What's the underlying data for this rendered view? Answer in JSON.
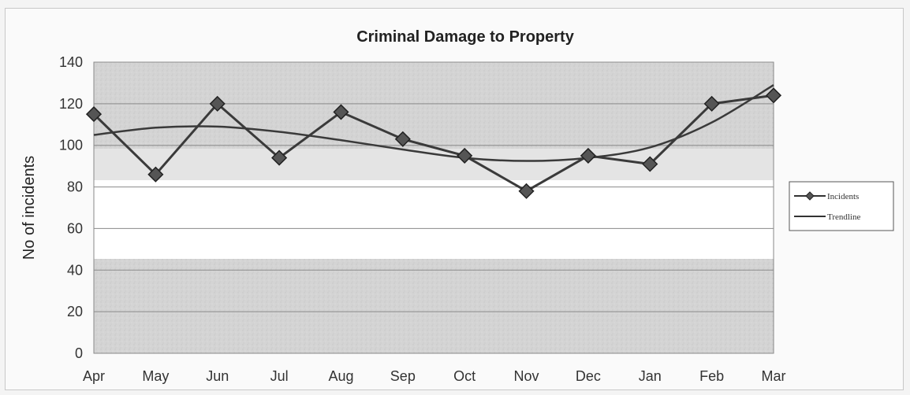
{
  "chart_data": {
    "type": "line",
    "title": "Criminal Damage to Property",
    "xlabel": "",
    "ylabel": "No of incidents",
    "categories": [
      "Apr",
      "May",
      "Jun",
      "Jul",
      "Aug",
      "Sep",
      "Oct",
      "Nov",
      "Dec",
      "Jan",
      "Feb",
      "Mar"
    ],
    "ylim": [
      0,
      140
    ],
    "yticks": [
      0,
      20,
      40,
      60,
      80,
      100,
      120,
      140
    ],
    "grid": true,
    "legend_position": "right",
    "series": [
      {
        "name": "Incidents",
        "marker": "diamond",
        "color": "#3a3a3a",
        "values": [
          115,
          86,
          120,
          94,
          116,
          103,
          95,
          78,
          95,
          91,
          120,
          124
        ]
      },
      {
        "name": "Trendline",
        "marker": "none",
        "color": "#3a3a3a",
        "values": [
          105,
          108.5,
          109,
          106.5,
          102.5,
          98,
          94,
          92.5,
          94,
          99,
          111,
          129
        ]
      }
    ]
  }
}
